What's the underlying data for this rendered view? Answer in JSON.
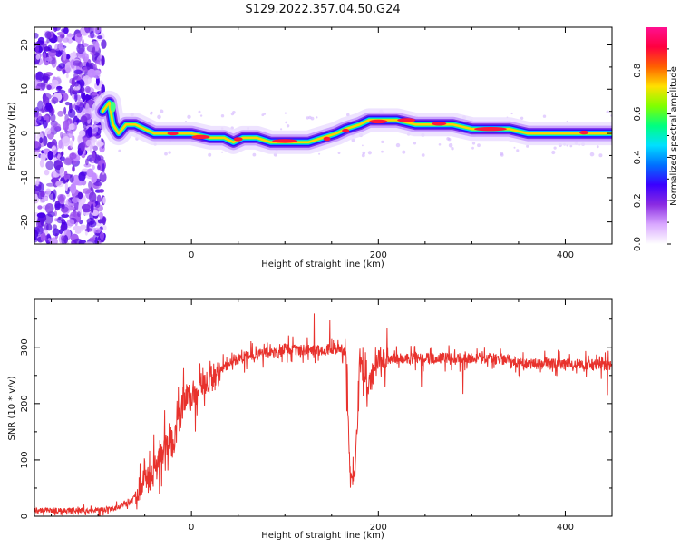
{
  "title": "S129.2022.357.04.50.G24",
  "chart_data": [
    {
      "type": "heatmap",
      "title": "",
      "xlabel": "Height of straight line (km)",
      "ylabel": "Frequency (Hz)",
      "xlim": [
        -168,
        450
      ],
      "ylim": [
        -25,
        24
      ],
      "xticks": [
        "0",
        "200",
        "400"
      ],
      "yticks": [
        "20",
        "10",
        "0",
        "-10",
        "-20"
      ],
      "colorbar": {
        "label": "Normalized spectral amplitude",
        "ticks": [
          "0.0",
          "0.2",
          "0.4",
          "0.6",
          "0.8"
        ],
        "range": [
          0,
          1
        ],
        "colors": [
          "#ffffff",
          "#d9a8ff",
          "#8a2be2",
          "#3a00ff",
          "#0070ff",
          "#00e0ff",
          "#00ff80",
          "#80ff00",
          "#ffe000",
          "#ff6000",
          "#ff0040",
          "#ff1090"
        ]
      },
      "ridge": {
        "x": [
          -95,
          -88,
          -84,
          -78,
          -70,
          -60,
          -50,
          -40,
          -30,
          -20,
          -10,
          0,
          20,
          35,
          45,
          55,
          70,
          85,
          100,
          115,
          125,
          140,
          155,
          165,
          180,
          190,
          200,
          220,
          240,
          260,
          280,
          300,
          320,
          340,
          360,
          380,
          400,
          420,
          450
        ],
        "y": [
          5,
          7,
          2,
          0,
          2,
          2,
          1,
          0,
          0,
          0,
          0,
          0,
          -1,
          -1,
          -2,
          -1,
          -1,
          -2,
          -2,
          -2,
          -2,
          -1,
          0,
          1,
          2,
          3,
          3,
          3,
          2,
          2,
          2,
          1,
          1,
          1,
          0,
          0,
          0,
          0,
          0
        ]
      }
    },
    {
      "type": "line",
      "title": "",
      "xlabel": "Height of straight line (km)",
      "ylabel": "SNR (10 * v/v)",
      "xlim": [
        -168,
        450
      ],
      "ylim": [
        0,
        385
      ],
      "xticks": [
        "0",
        "200",
        "400"
      ],
      "yticks": [
        "0",
        "100",
        "200",
        "300"
      ],
      "color": "#e8322d",
      "series": [
        {
          "x": [
            -168,
            -140,
            -120,
            -100,
            -80,
            -65,
            -55,
            -50,
            -45,
            -40,
            -35,
            -30,
            -25,
            -20,
            -15,
            -10,
            -5,
            0,
            5,
            10,
            15,
            20,
            25,
            30,
            40,
            50,
            60,
            80,
            95,
            100,
            105,
            120,
            140,
            160,
            165,
            168,
            170,
            175,
            180,
            185,
            190,
            195,
            200,
            210,
            240,
            280,
            320,
            340,
            350,
            360,
            380,
            400,
            420,
            450
          ],
          "y": [
            10,
            10,
            10,
            10,
            15,
            25,
            45,
            80,
            60,
            80,
            100,
            120,
            140,
            130,
            160,
            190,
            220,
            210,
            220,
            250,
            230,
            240,
            250,
            260,
            270,
            280,
            285,
            290,
            290,
            300,
            295,
            295,
            295,
            300,
            290,
            150,
            70,
            70,
            280,
            240,
            230,
            250,
            275,
            280,
            280,
            282,
            280,
            278,
            270,
            270,
            272,
            270,
            270,
            268
          ]
        }
      ]
    }
  ]
}
